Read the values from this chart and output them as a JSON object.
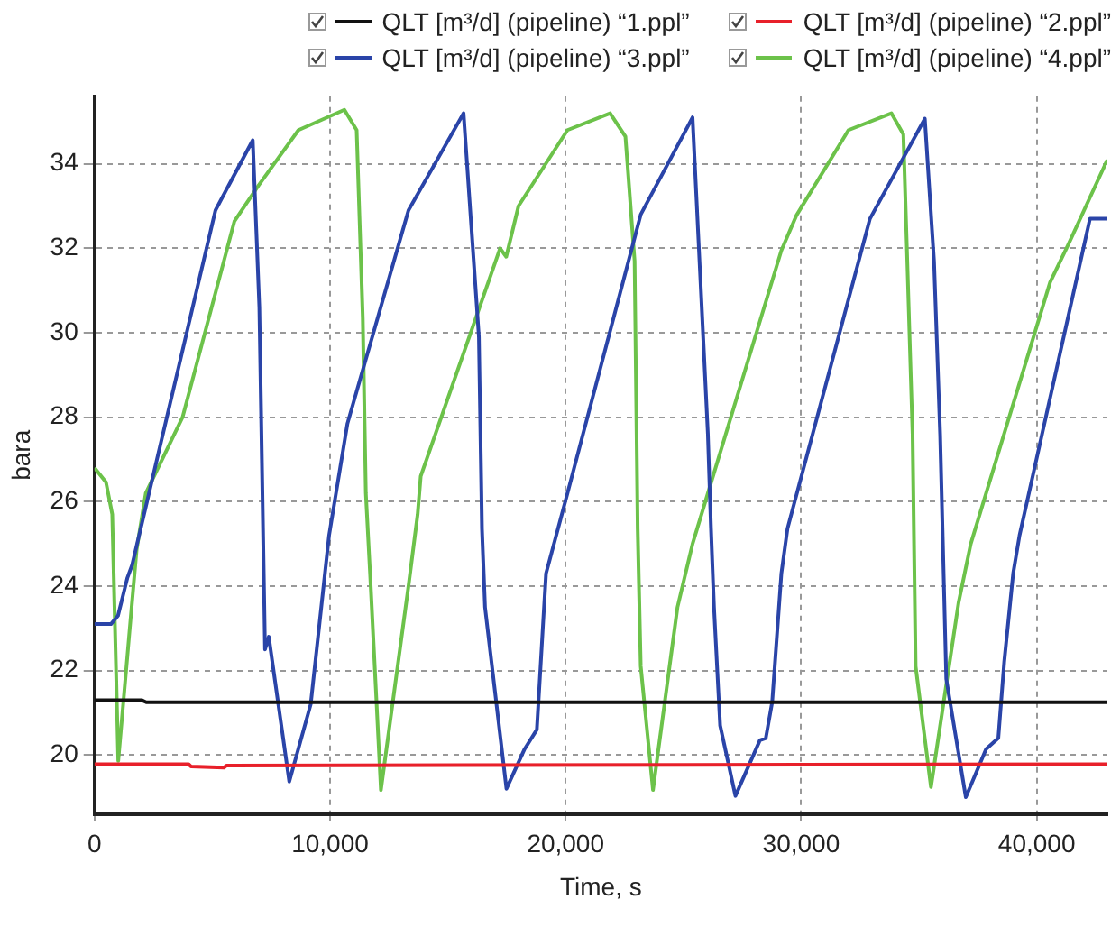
{
  "chart_data": {
    "type": "line",
    "xlabel": "Time, s",
    "ylabel": "bara",
    "xlim": [
      0,
      43000
    ],
    "ylim": [
      18.6,
      35.6
    ],
    "xticks": [
      {
        "value": 0,
        "label": "0"
      },
      {
        "value": 10000,
        "label": "10,000"
      },
      {
        "value": 20000,
        "label": "20,000"
      },
      {
        "value": 30000,
        "label": "30,000"
      },
      {
        "value": 40000,
        "label": "40,000"
      }
    ],
    "yticks": [
      20,
      22,
      24,
      26,
      28,
      30,
      32,
      34
    ],
    "grid": true,
    "legend": "top",
    "marker": "none",
    "line_style": "solid",
    "series": [
      {
        "name": "QLT [m³/d] (pipeline) “1.ppl”",
        "color": "#111111",
        "x": [
          0,
          2000,
          2200,
          43000
        ],
        "values": [
          21.3,
          21.3,
          21.25,
          21.25
        ]
      },
      {
        "name": "QLT [m³/d] (pipeline) “2.ppl”",
        "color": "#e8202a",
        "x": [
          0,
          4000,
          4100,
          5500,
          5600,
          43000
        ],
        "values": [
          19.78,
          19.78,
          19.73,
          19.7,
          19.75,
          19.78
        ]
      },
      {
        "name": "QLT [m³/d] (pipeline) “3.ppl”",
        "color": "#2a44a8",
        "x": [
          0,
          700,
          1000,
          1400,
          1600,
          5136,
          6720,
          7000,
          7240,
          7400,
          8270,
          9180,
          9960,
          10740,
          13330,
          15670,
          16320,
          16450,
          16580,
          17490,
          18260,
          18780,
          19170,
          20080,
          23190,
          25390,
          26040,
          26170,
          26300,
          26560,
          27210,
          28250,
          28500,
          28770,
          29160,
          29420,
          32920,
          35250,
          35640,
          35900,
          36160,
          36990,
          37850,
          38370,
          38620,
          39000,
          39270,
          42260,
          43000
        ],
        "values": [
          23.1,
          23.1,
          23.3,
          24.2,
          24.5,
          32.9,
          34.56,
          30.6,
          22.5,
          22.8,
          19.37,
          21.2,
          25.2,
          27.85,
          32.9,
          35.2,
          29.9,
          25.36,
          23.5,
          19.2,
          20.14,
          20.6,
          24.3,
          26.2,
          32.8,
          35.1,
          27.6,
          25.4,
          23.5,
          20.7,
          19.03,
          20.35,
          20.4,
          21.25,
          24.3,
          25.36,
          32.7,
          35.07,
          31.7,
          27.6,
          21.8,
          19.0,
          20.14,
          20.4,
          22.2,
          24.3,
          25.2,
          32.7,
          32.7
        ]
      },
      {
        "name": "QLT [m³/d] (pipeline) “4.ppl”",
        "color": "#6cc24a",
        "x": [
          0,
          490,
          755,
          1010,
          1790,
          2180,
          3740,
          5940,
          6980,
          8660,
          10610,
          11130,
          11390,
          11520,
          11700,
          12160,
          13330,
          13720,
          13850,
          17220,
          17480,
          18000,
          20080,
          21890,
          22540,
          22930,
          23060,
          23190,
          23710,
          24750,
          25390,
          29160,
          29800,
          32010,
          33830,
          34340,
          34730,
          34860,
          35510,
          36680,
          37200,
          40570,
          41350,
          43000
        ],
        "values": [
          26.8,
          26.46,
          25.7,
          19.86,
          24.86,
          26.2,
          28.0,
          32.64,
          33.5,
          34.8,
          35.28,
          34.8,
          30.35,
          26.2,
          24.3,
          19.17,
          24.0,
          25.7,
          26.6,
          32.0,
          31.8,
          33.0,
          34.8,
          35.2,
          34.65,
          31.7,
          25.36,
          22.1,
          19.17,
          23.5,
          25.0,
          31.95,
          32.78,
          34.8,
          35.2,
          34.7,
          27.6,
          22.1,
          19.24,
          23.6,
          25.0,
          31.2,
          32.1,
          34.1
        ]
      }
    ]
  }
}
